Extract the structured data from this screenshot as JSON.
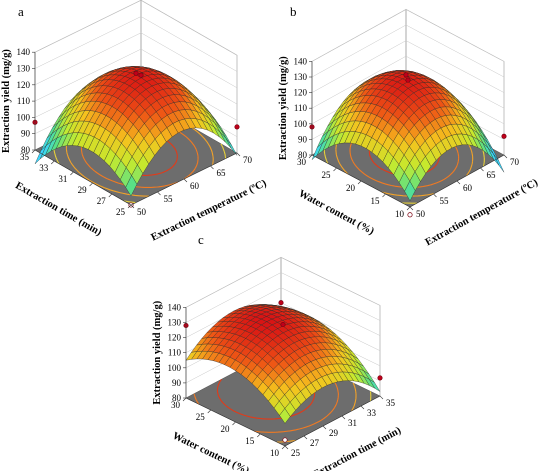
{
  "chart_data": [
    {
      "type": "surface",
      "panel_label": "a",
      "xlabel": "Extraction temperature (ºC)",
      "ylabel": "Extraction time (min)",
      "zlabel": "Extraction yield (mg/g)",
      "xlim": [
        50,
        70
      ],
      "ylim": [
        25,
        35
      ],
      "zlim": [
        80,
        140
      ],
      "x_ticks": [
        "50",
        "55",
        "60",
        "65",
        "70"
      ],
      "y_ticks": [
        "25",
        "27",
        "29",
        "31",
        "33",
        "35"
      ],
      "z_ticks": [
        "80",
        "90",
        "100",
        "110",
        "120",
        "130",
        "140"
      ],
      "model": {
        "a0": 127,
        "ax": 0.5,
        "ay": -3,
        "bx": -28,
        "by": -20,
        "cxy": 4
      },
      "design_points": [
        {
          "x": 60,
          "y": 30,
          "z": 128
        },
        {
          "x": 50,
          "y": 25,
          "z": 80
        },
        {
          "x": 70,
          "y": 35,
          "z": 94
        },
        {
          "x": 50,
          "y": 35,
          "z": 97
        },
        {
          "x": 70,
          "y": 25,
          "z": 96
        }
      ],
      "contours": true,
      "colormap": [
        "#3ad7ff",
        "#55e08a",
        "#c5ea2e",
        "#f5c21e",
        "#ee5515",
        "#d91414"
      ]
    },
    {
      "type": "surface",
      "panel_label": "b",
      "xlabel": "Extraction temperature (ºC)",
      "ylabel": "Water content (%)",
      "zlabel": "Extraction yield (mg/g)",
      "xlim": [
        50,
        70
      ],
      "ylim": [
        10,
        30
      ],
      "zlim": [
        80,
        140
      ],
      "x_ticks": [
        "50",
        "55",
        "60",
        "65",
        "70"
      ],
      "y_ticks": [
        "10",
        "15",
        "20",
        "25",
        "30"
      ],
      "z_ticks": [
        "80",
        "90",
        "100",
        "110",
        "120",
        "130",
        "140"
      ],
      "model": {
        "a0": 127,
        "ax": -1.5,
        "ay": 2.5,
        "bx": -26,
        "by": -22,
        "cxy": 6
      },
      "design_points": [
        {
          "x": 60,
          "y": 20,
          "z": 128
        },
        {
          "x": 50,
          "y": 10,
          "z": 75
        },
        {
          "x": 70,
          "y": 30,
          "z": 98
        },
        {
          "x": 50,
          "y": 30,
          "z": 98
        },
        {
          "x": 70,
          "y": 10,
          "z": 92
        }
      ],
      "contours": true,
      "colormap": [
        "#3ad7ff",
        "#55e08a",
        "#c5ea2e",
        "#f5c21e",
        "#ee5515",
        "#d91414"
      ]
    },
    {
      "type": "surface",
      "panel_label": "c",
      "xlabel": "Extraction time (min)",
      "ylabel": "Water content (%)",
      "zlabel": "Extraction yield (mg/g)",
      "xlim": [
        25,
        35
      ],
      "ylim": [
        10,
        30
      ],
      "zlim": [
        80,
        140
      ],
      "x_ticks": [
        "25",
        "27",
        "29",
        "31",
        "33",
        "35"
      ],
      "y_ticks": [
        "10",
        "15",
        "20",
        "25",
        "30"
      ],
      "z_ticks": [
        "80",
        "90",
        "100",
        "110",
        "120",
        "130",
        "140"
      ],
      "model": {
        "a0": 127,
        "ax": -3,
        "ay": 8,
        "bx": -16,
        "by": -14,
        "cxy": 3
      },
      "design_points": [
        {
          "x": 30,
          "y": 20,
          "z": 128
        },
        {
          "x": 25,
          "y": 10,
          "z": 84
        },
        {
          "x": 35,
          "y": 30,
          "z": 110
        },
        {
          "x": 25,
          "y": 30,
          "z": 128
        },
        {
          "x": 35,
          "y": 10,
          "z": 92
        }
      ],
      "contours": true,
      "colormap": [
        "#3ad7ff",
        "#55e08a",
        "#c5ea2e",
        "#f5c21e",
        "#ee5515",
        "#d91414"
      ]
    }
  ]
}
